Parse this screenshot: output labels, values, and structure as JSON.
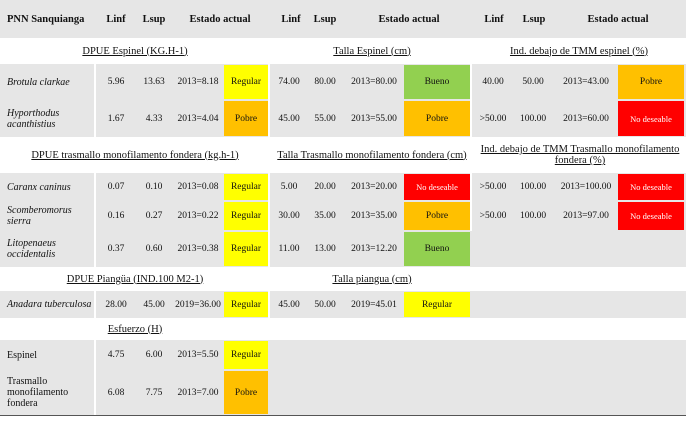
{
  "colors": {
    "regular": "#ffff00",
    "pobre": "#ffc000",
    "bueno": "#92d050",
    "no_deseable": "#ff0000",
    "row_gray": "#e6e6e6"
  },
  "header": {
    "place": "PNN Sanquianga",
    "linf": "Linf",
    "lsup": "Lsup",
    "estado": "Estado actual"
  },
  "sections": {
    "dpue_espinel": "DPUE Espinel (KG.H-1)",
    "talla_espinel": "Talla Espinel (cm)",
    "tmm_espinel": "Ind. debajo de TMM espinel (%)",
    "dpue_trasmallo": "DPUE trasmallo monofilamento fondera (kg.h-1)",
    "talla_trasmallo": "Talla Trasmallo monofilamento fondera (cm)",
    "tmm_trasmallo": "Ind. debajo de TMM Trasmallo monofilamento fondera (%)",
    "dpue_piangua": "DPUE Piangüa (IND.100 M2-1)",
    "talla_piangua": "Talla piangua (cm)",
    "esfuerzo": "Esfuerzo (H)"
  },
  "rows": [
    {
      "species": "Brotula clarkae",
      "italic": true,
      "g1": {
        "linf": "5.96",
        "lsup": "13.63",
        "actual": "2013=8.18",
        "status": "Regular",
        "color": "regular"
      },
      "g2": {
        "linf": "74.00",
        "lsup": "80.00",
        "actual": "2013=80.00",
        "status": "Bueno",
        "color": "bueno"
      },
      "g3": {
        "linf": "40.00",
        "lsup": "50.00",
        "actual": "2013=43.00",
        "status": "Pobre",
        "color": "pobre"
      }
    },
    {
      "species": "Hyporthodus acanthistius",
      "italic": true,
      "g1": {
        "linf": "1.67",
        "lsup": "4.33",
        "actual": "2013=4.04",
        "status": "Pobre",
        "color": "pobre"
      },
      "g2": {
        "linf": "45.00",
        "lsup": "55.00",
        "actual": "2013=55.00",
        "status": "Pobre",
        "color": "pobre"
      },
      "g3": {
        "linf": ">50.00",
        "lsup": "100.00",
        "actual": "2013=60.00",
        "status": "No deseable",
        "color": "no_deseable"
      }
    },
    {
      "species": "Caranx caninus",
      "italic": true,
      "g1": {
        "linf": "0.07",
        "lsup": "0.10",
        "actual": "2013=0.08",
        "status": "Regular",
        "color": "regular"
      },
      "g2": {
        "linf": "5.00",
        "lsup": "20.00",
        "actual": "2013=20.00",
        "status": "No deseable",
        "color": "no_deseable"
      },
      "g3": {
        "linf": ">50.00",
        "lsup": "100.00",
        "actual": "2013=100.00",
        "status": "No deseable",
        "color": "no_deseable"
      }
    },
    {
      "species": "Scomberomorus sierra",
      "italic": true,
      "g1": {
        "linf": "0.16",
        "lsup": "0.27",
        "actual": "2013=0.22",
        "status": "Regular",
        "color": "regular"
      },
      "g2": {
        "linf": "30.00",
        "lsup": "35.00",
        "actual": "2013=35.00",
        "status": "Pobre",
        "color": "pobre"
      },
      "g3": {
        "linf": ">50.00",
        "lsup": "100.00",
        "actual": "2013=97.00",
        "status": "No deseable",
        "color": "no_deseable"
      }
    },
    {
      "species": "Litopenaeus occidentalis",
      "italic": true,
      "g1": {
        "linf": "0.37",
        "lsup": "0.60",
        "actual": "2013=0.38",
        "status": "Regular",
        "color": "regular"
      },
      "g2": {
        "linf": "11.00",
        "lsup": "13.00",
        "actual": "2013=12.20",
        "status": "Bueno",
        "color": "bueno"
      }
    },
    {
      "species": "Anadara tuberculosa",
      "italic": true,
      "g1": {
        "linf": "28.00",
        "lsup": "45.00",
        "actual": "2019=36.00",
        "status": "Regular",
        "color": "regular"
      },
      "g2": {
        "linf": "45.00",
        "lsup": "50.00",
        "actual": "2019=45.01",
        "status": "Regular",
        "color": "regular"
      }
    },
    {
      "species": "Espinel",
      "italic": false,
      "g1": {
        "linf": "4.75",
        "lsup": "6.00",
        "actual": "2013=5.50",
        "status": "Regular",
        "color": "regular"
      }
    },
    {
      "species": "Trasmallo monofilamento fondera",
      "italic": false,
      "g1": {
        "linf": "6.08",
        "lsup": "7.75",
        "actual": "2013=7.00",
        "status": "Pobre",
        "color": "pobre"
      }
    }
  ]
}
